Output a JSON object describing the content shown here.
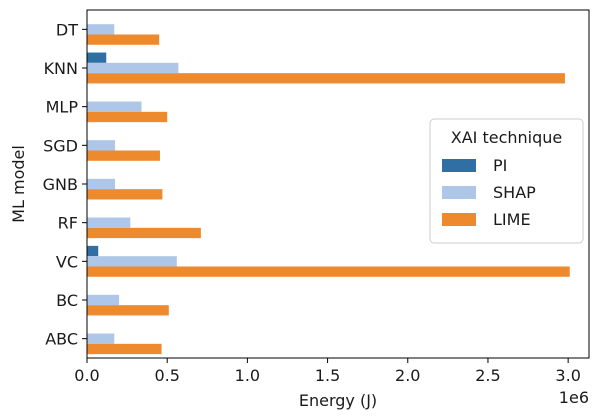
{
  "chart_data": {
    "type": "bar",
    "orientation": "horizontal",
    "categories": [
      "DT",
      "KNN",
      "MLP",
      "SGD",
      "GNB",
      "RF",
      "VC",
      "BC",
      "ABC"
    ],
    "series": [
      {
        "name": "PI",
        "color": "#2f6fa3",
        "values": [
          2000,
          120000,
          3000,
          2000,
          2000,
          3000,
          70000,
          2000,
          2000
        ]
      },
      {
        "name": "SHAP",
        "color": "#aec7e8",
        "values": [
          170000,
          570000,
          340000,
          175000,
          175000,
          270000,
          560000,
          200000,
          170000
        ]
      },
      {
        "name": "LIME",
        "color": "#ee8a2e",
        "values": [
          450000,
          2980000,
          500000,
          455000,
          470000,
          710000,
          3010000,
          510000,
          465000
        ]
      }
    ],
    "xlabel": "Energy (J)",
    "ylabel": "ML model",
    "xlim": [
      0,
      3130000
    ],
    "x_ticks": [
      0,
      500000,
      1000000,
      1500000,
      2000000,
      2500000,
      3000000
    ],
    "x_tick_labels": [
      "0.0",
      "0.5",
      "1.0",
      "1.5",
      "2.0",
      "2.5",
      "3.0"
    ],
    "x_offset_label": "1e6",
    "grid": false,
    "legend": {
      "title": "XAI technique",
      "placement": "center-right",
      "entries": [
        "PI",
        "SHAP",
        "LIME"
      ]
    }
  }
}
